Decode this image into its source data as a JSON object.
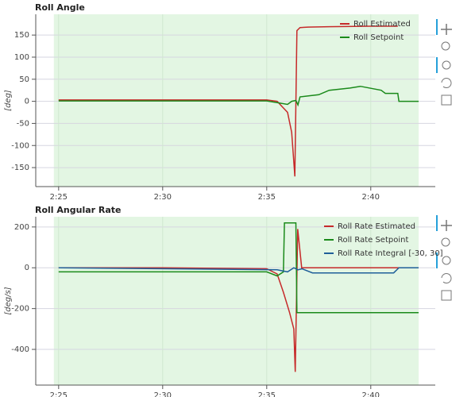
{
  "chart_data": [
    {
      "type": "line",
      "title": "Roll Angle",
      "y_label": "[deg]",
      "xlim": [
        143.9,
        163.1
      ],
      "xticks": [
        {
          "value": 145,
          "label": "2:25"
        },
        {
          "value": 150,
          "label": "2:30"
        },
        {
          "value": 155,
          "label": "2:35"
        },
        {
          "value": 160,
          "label": "2:40"
        }
      ],
      "ylim": [
        -193,
        197
      ],
      "yticks": [
        -150,
        -100,
        -50,
        0,
        50,
        100,
        150
      ],
      "grid": true,
      "legend": "top-right",
      "highlight": [
        144.77,
        162.3
      ],
      "series": [
        {
          "name": "Roll Estimated",
          "color": "#c62a2a",
          "x": [
            145,
            150,
            155,
            155.5,
            156,
            156.2,
            156.35,
            156.45,
            156.6,
            157,
            158,
            160,
            161.3
          ],
          "values": [
            3,
            3,
            3,
            0,
            -25,
            -70,
            -170,
            160,
            167,
            168,
            169,
            170,
            170
          ]
        },
        {
          "name": "Roll Setpoint",
          "color": "#1a8a1a",
          "x": [
            145,
            155,
            155.5,
            156,
            156.2,
            156.4,
            156.5,
            156.6,
            157.5,
            158,
            159,
            159.5,
            160.5,
            160.7,
            161.3,
            161.35,
            162.3
          ],
          "values": [
            1,
            1,
            -3,
            -7,
            0,
            2,
            -8,
            10,
            15,
            25,
            30,
            34,
            25,
            18,
            18,
            0,
            0
          ]
        }
      ]
    },
    {
      "type": "line",
      "title": "Roll Angular Rate",
      "y_label": "[deg/s]",
      "xlim": [
        143.9,
        163.1
      ],
      "xticks": [
        {
          "value": 145,
          "label": "2:25"
        },
        {
          "value": 150,
          "label": "2:30"
        },
        {
          "value": 155,
          "label": "2:35"
        },
        {
          "value": 160,
          "label": "2:40"
        }
      ],
      "ylim": [
        -575,
        250
      ],
      "yticks": [
        -400,
        -200,
        0,
        200
      ],
      "grid": true,
      "legend": "top-right",
      "highlight": [
        144.77,
        162.3
      ],
      "series": [
        {
          "name": "Roll Rate Estimated",
          "color": "#c62a2a",
          "x": [
            145,
            150,
            155,
            155.5,
            155.8,
            156.1,
            156.3,
            156.37,
            156.49,
            156.68,
            158,
            162.3
          ],
          "values": [
            0,
            0,
            -5,
            -30,
            -120,
            -220,
            -300,
            -510,
            190,
            0,
            0,
            0
          ]
        },
        {
          "name": "Roll Rate Setpoint",
          "color": "#1a8a1a",
          "x": [
            145,
            155,
            155.5,
            155.8,
            155.85,
            156.4,
            156.45,
            162.3
          ],
          "values": [
            -20,
            -20,
            -40,
            -20,
            220,
            220,
            -220,
            -220
          ]
        },
        {
          "name": "Roll Rate Integral [-30, 30]",
          "color": "#1f5f99",
          "x": [
            145,
            155.5,
            156,
            156.3,
            156.5,
            156.7,
            157.2,
            161.1,
            161.35,
            162.3
          ],
          "values": [
            0,
            -10,
            -20,
            0,
            -10,
            -5,
            -25,
            -25,
            0,
            0
          ]
        }
      ]
    }
  ]
}
